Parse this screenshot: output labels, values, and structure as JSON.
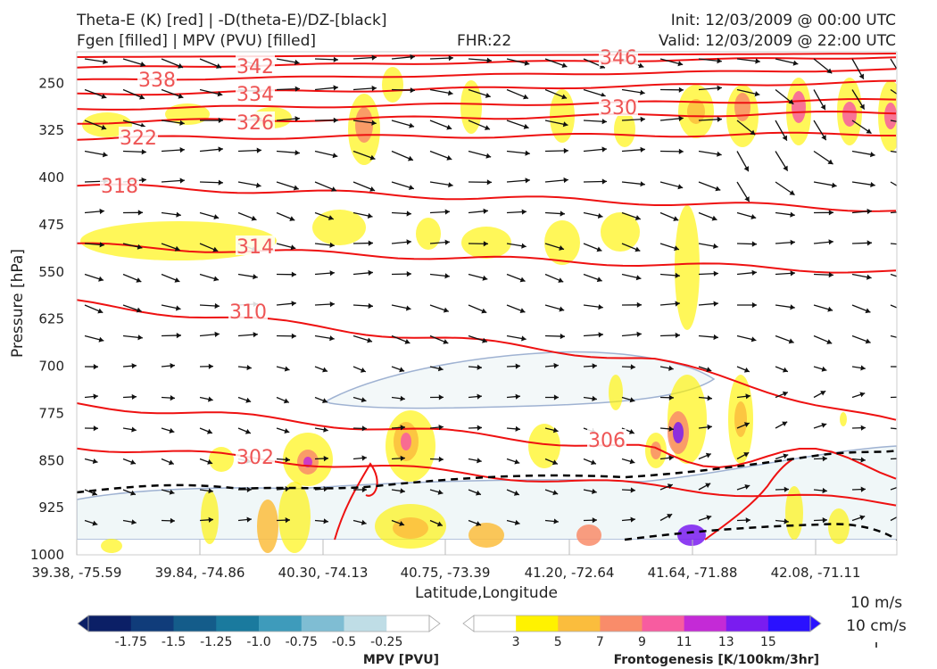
{
  "header": {
    "title_left_1": "Theta-E (K) [red] | -D(theta-E)/DZ-[black]",
    "title_left_2": "Fgen [filled] | MPV (PVU) [filled]",
    "fhr": "FHR:22",
    "init": "Init: 12/03/2009 @ 00:00 UTC",
    "valid": "Valid: 12/03/2009 @ 22:00 UTC"
  },
  "chart_data": {
    "type": "cross-section",
    "xlabel": "Latitude,Longitude",
    "ylabel": "Pressure [hPa]",
    "ylim": [
      1000,
      200
    ],
    "pressure_ticks": [
      "250",
      "325",
      "400",
      "475",
      "550",
      "625",
      "700",
      "775",
      "850",
      "925",
      "1000"
    ],
    "x_ticks": [
      "39.38, -75.59",
      "39.84, -74.86",
      "40.30, -74.13",
      "40.75, -73.39",
      "41.20, -72.64",
      "41.64, -71.88",
      "42.08, -71.11"
    ],
    "theta_e_labels": [
      "346",
      "342",
      "338",
      "334",
      "330",
      "326",
      "322",
      "318",
      "314",
      "310",
      "306",
      "302"
    ],
    "theta_e_color": "#ee1111",
    "mpv_colorbar": {
      "label": "MPV [PVU]",
      "ticks": [
        "-1.75",
        "-1.5",
        "-1.25",
        "-1.0",
        "-0.75",
        "-0.5",
        "-0.25"
      ],
      "colors": [
        "#0b1f66",
        "#103c7a",
        "#145c8a",
        "#1a7a9e",
        "#3e9bbb",
        "#7fbdd3",
        "#bfdde6",
        "#ffffff"
      ]
    },
    "fgen_colorbar": {
      "label": "Frontogenesis [K/100km/3hr]",
      "ticks": [
        "3",
        "5",
        "7",
        "9",
        "11",
        "13",
        "15"
      ],
      "colors": [
        "#ffffff",
        "#fff200",
        "#fbbd3d",
        "#f98c6a",
        "#f75ca0",
        "#c42ad6",
        "#7a1cf0",
        "#2a11ff"
      ]
    },
    "vector_key": {
      "wind": "10 m/s",
      "vertical": "10 cm/s"
    }
  }
}
